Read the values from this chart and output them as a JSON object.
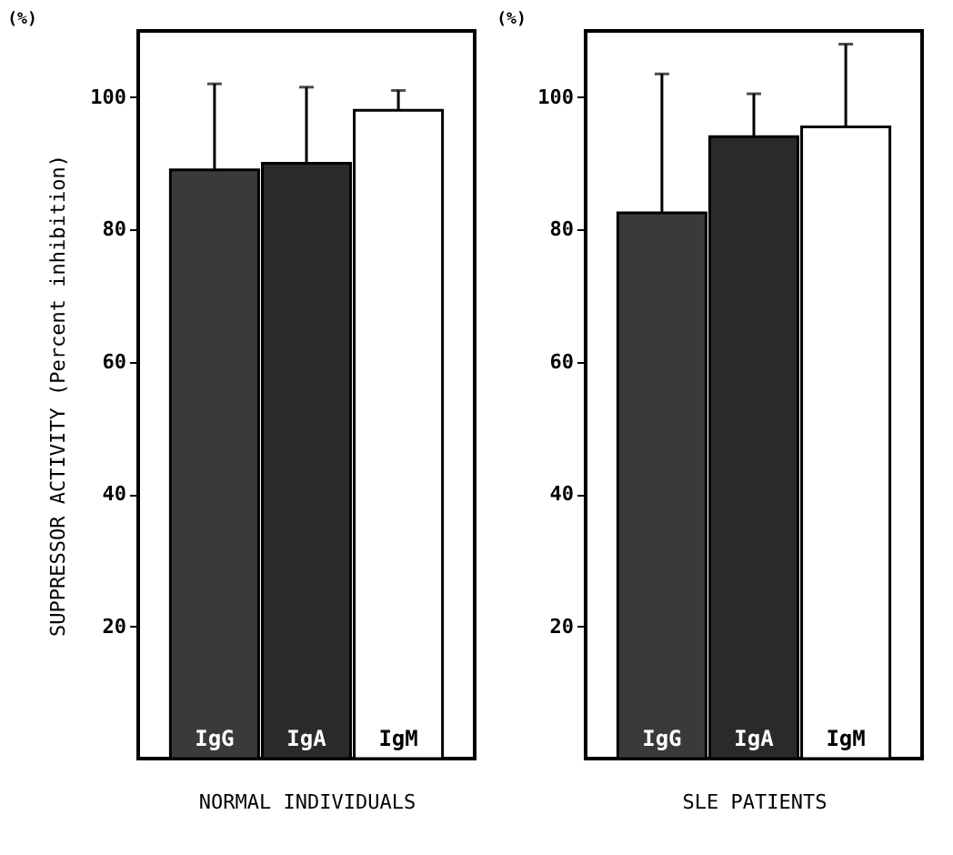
{
  "chart_data": [
    {
      "type": "bar",
      "annotations": [
        "(%)"
      ],
      "ylabel": "SUPPRESSOR ACTIVITY (Percent inhibition)",
      "xlabel": "NORMAL INDIVIDUALS",
      "categories": [
        "IgG",
        "IgA",
        "IgM"
      ],
      "values": [
        89,
        90,
        98
      ],
      "colors": [
        "#3a3a3a",
        "#2a2a2a",
        "#ffffff"
      ],
      "errors": [
        [
          89,
          102
        ],
        [
          90,
          101.5
        ],
        [
          98,
          101
        ]
      ],
      "ylim": [
        0,
        110
      ],
      "yticks": [
        20,
        40,
        60,
        80,
        100
      ],
      "grid": false
    },
    {
      "type": "bar",
      "annotations": [
        "(%)"
      ],
      "xlabel": "SLE PATIENTS",
      "categories": [
        "IgG",
        "IgA",
        "IgM"
      ],
      "values": [
        82.5,
        94,
        95.5
      ],
      "colors": [
        "#3a3a3a",
        "#2a2a2a",
        "#ffffff"
      ],
      "errors": [
        [
          82.5,
          103.5
        ],
        [
          94,
          100.5
        ],
        [
          95.5,
          108
        ]
      ],
      "ylim": [
        0,
        110
      ],
      "yticks": [
        20,
        40,
        60,
        80,
        100
      ],
      "grid": false
    }
  ]
}
